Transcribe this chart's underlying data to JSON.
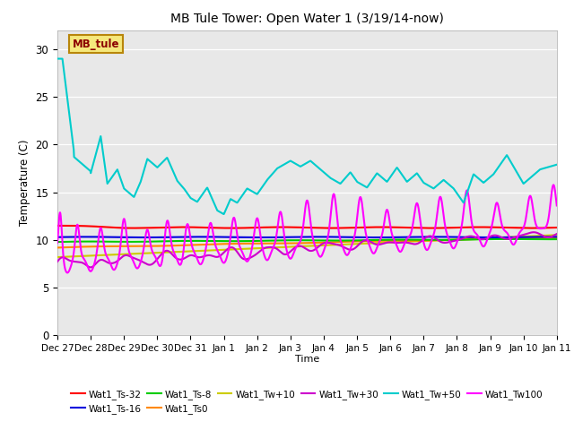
{
  "title": "MB Tule Tower: Open Water 1 (3/19/14-now)",
  "xlabel": "Time",
  "ylabel": "Temperature (C)",
  "ylim": [
    0,
    32
  ],
  "xlim": [
    0,
    15
  ],
  "background_color": "#e8e8e8",
  "plot_bg": "#e8e8e8",
  "yticks": [
    0,
    5,
    10,
    15,
    20,
    25,
    30
  ],
  "xtick_labels": [
    "Dec 27",
    "Dec 28",
    "Dec 29",
    "Dec 30",
    "Dec 31",
    "Jan 1",
    "Jan 2",
    "Jan 3",
    "Jan 4",
    "Jan 5",
    "Jan 6",
    "Jan 7",
    "Jan 8",
    "Jan 9",
    "Jan 10",
    "Jan 11"
  ],
  "legend_label_box": "MB_tule",
  "series": {
    "Wat1_Ts-32": {
      "color": "#ff0000",
      "lw": 1.5
    },
    "Wat1_Ts-16": {
      "color": "#0000dd",
      "lw": 1.5
    },
    "Wat1_Ts-8": {
      "color": "#00cc00",
      "lw": 1.5
    },
    "Wat1_Ts0": {
      "color": "#ff8800",
      "lw": 1.5
    },
    "Wat1_Tw+10": {
      "color": "#cccc00",
      "lw": 1.5
    },
    "Wat1_Tw+30": {
      "color": "#cc00cc",
      "lw": 1.5
    },
    "Wat1_Tw+50": {
      "color": "#00cccc",
      "lw": 1.5
    },
    "Wat1_Tw100": {
      "color": "#ff00ff",
      "lw": 1.5
    }
  }
}
